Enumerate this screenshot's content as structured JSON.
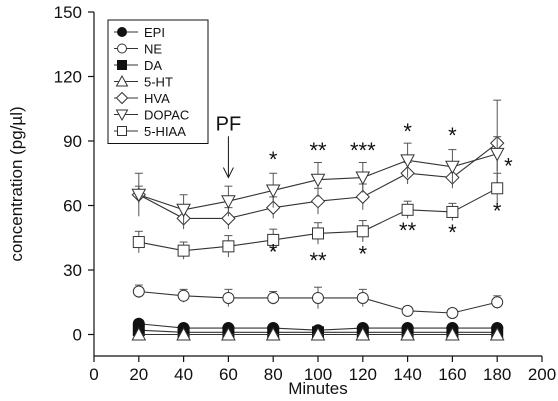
{
  "chart_data": {
    "type": "line",
    "xlabel": "Minutes",
    "ylabel": "concentration (pg/µl)",
    "xlim": [
      0,
      200
    ],
    "ylim": [
      -10,
      150
    ],
    "xticks": [
      0,
      20,
      40,
      60,
      80,
      100,
      120,
      140,
      160,
      180,
      200
    ],
    "yticks": [
      0,
      30,
      60,
      90,
      120,
      150
    ],
    "x": [
      20,
      40,
      60,
      80,
      100,
      120,
      140,
      160,
      180
    ],
    "legend_position": "top-left",
    "series": [
      {
        "name": "EPI",
        "marker": "circle-filled",
        "values": [
          5,
          3,
          3,
          3,
          2,
          3,
          3,
          3,
          3
        ],
        "errors": [
          2,
          1,
          1,
          1,
          1,
          1,
          1,
          1,
          1
        ]
      },
      {
        "name": "NE",
        "marker": "circle-open",
        "values": [
          20,
          18,
          17,
          17,
          17,
          17,
          11,
          10,
          15
        ],
        "errors": [
          3,
          3,
          4,
          3,
          5,
          4,
          2,
          2,
          3
        ]
      },
      {
        "name": "DA",
        "marker": "square-filled",
        "values": [
          2,
          1,
          1,
          1,
          1,
          1,
          1,
          1,
          1
        ],
        "errors": [
          1,
          1,
          1,
          1,
          1,
          1,
          1,
          1,
          1
        ]
      },
      {
        "name": "5-HT",
        "marker": "triangle-up-open",
        "values": [
          0,
          0,
          0,
          0,
          0,
          0,
          0,
          0,
          0
        ],
        "errors": [
          0,
          0,
          0,
          0,
          0,
          0,
          0,
          0,
          0
        ]
      },
      {
        "name": "HVA",
        "marker": "diamond-open",
        "values": [
          65,
          54,
          54,
          59,
          62,
          64,
          75,
          73,
          89
        ],
        "errors": [
          4,
          5,
          5,
          5,
          6,
          6,
          5,
          5,
          20
        ]
      },
      {
        "name": "DOPAC",
        "marker": "triangle-down-open",
        "values": [
          65,
          58,
          62,
          67,
          72,
          73,
          81,
          78,
          84
        ],
        "errors": [
          10,
          7,
          7,
          8,
          8,
          7,
          8,
          8,
          8
        ]
      },
      {
        "name": "5-HIAA",
        "marker": "square-open",
        "values": [
          43,
          39,
          41,
          44,
          47,
          48,
          58,
          57,
          68
        ],
        "errors": [
          5,
          4,
          5,
          5,
          5,
          5,
          4,
          4,
          7
        ]
      }
    ],
    "annotations": [
      {
        "text": "PF",
        "x": 60,
        "y": 95,
        "arrow_to": 73
      }
    ],
    "significance_marks": [
      {
        "x": 80,
        "y": 78,
        "text": "*"
      },
      {
        "x": 100,
        "y": 82,
        "text": "**"
      },
      {
        "x": 120,
        "y": 82,
        "text": "***"
      },
      {
        "x": 140,
        "y": 91,
        "text": "*"
      },
      {
        "x": 160,
        "y": 89,
        "text": "*"
      },
      {
        "x": 185,
        "y": 75,
        "text": "*"
      },
      {
        "x": 80,
        "y": 35,
        "text": "*"
      },
      {
        "x": 100,
        "y": 31,
        "text": "**"
      },
      {
        "x": 120,
        "y": 34,
        "text": "*"
      },
      {
        "x": 140,
        "y": 45,
        "text": "**"
      },
      {
        "x": 160,
        "y": 44,
        "text": "*"
      },
      {
        "x": 180,
        "y": 54,
        "text": "*"
      }
    ]
  }
}
